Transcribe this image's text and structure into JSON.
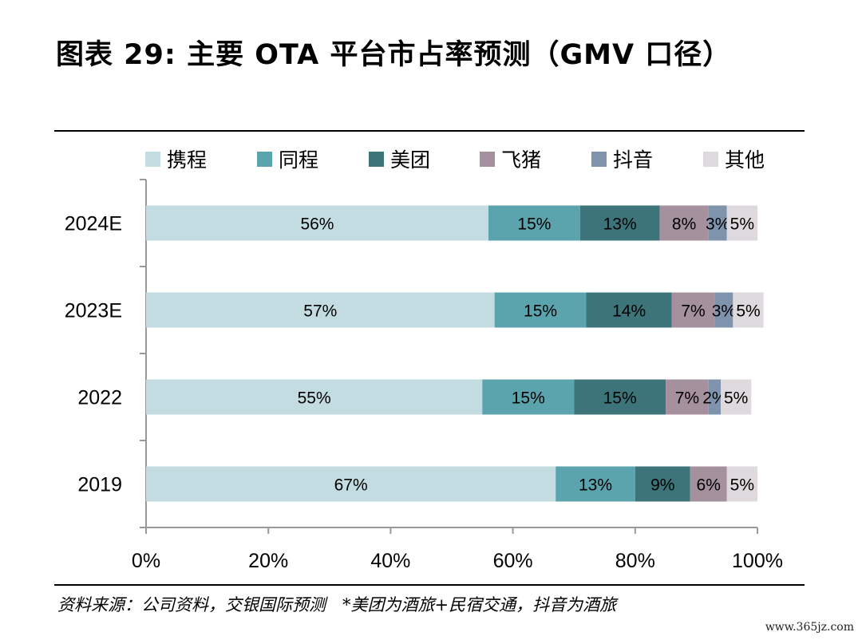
{
  "title": "图表 29: 主要 OTA 平台市占率预测（GMV 口径）",
  "source": "资料来源：公司资料，交银国际预测　*美团为酒旅+民宿交通，抖音为酒旅",
  "watermark": "www.365jz.com",
  "chart_data": {
    "type": "bar",
    "orientation": "horizontal",
    "stacked": true,
    "categories": [
      "2024E",
      "2023E",
      "2022",
      "2019"
    ],
    "series": [
      {
        "name": "携程",
        "color": "#c2dce1",
        "values": [
          56,
          57,
          55,
          67
        ],
        "labels": [
          "56%",
          "57%",
          "55%",
          "67%"
        ]
      },
      {
        "name": "同程",
        "color": "#5ba3ad",
        "values": [
          15,
          15,
          15,
          13
        ],
        "labels": [
          "15%",
          "15%",
          "15%",
          "13%"
        ]
      },
      {
        "name": "美团",
        "color": "#3c7479",
        "values": [
          13,
          14,
          15,
          9
        ],
        "labels": [
          "13%",
          "14%",
          "15%",
          "9%"
        ]
      },
      {
        "name": "飞猪",
        "color": "#a5909d",
        "values": [
          8,
          7,
          7,
          6
        ],
        "labels": [
          "8%",
          "7%",
          "7%",
          "6%"
        ]
      },
      {
        "name": "抖音",
        "color": "#8093ad",
        "values": [
          3,
          3,
          2,
          0
        ],
        "labels": [
          "3%",
          "3%",
          "2%",
          ""
        ]
      },
      {
        "name": "其他",
        "color": "#ddd9dc",
        "values": [
          5,
          5,
          5,
          5
        ],
        "labels": [
          "5%",
          "5%",
          "5%",
          "5%"
        ]
      }
    ],
    "xlim": [
      0,
      100
    ],
    "xticks": [
      0,
      20,
      40,
      60,
      80,
      100
    ],
    "xtick_labels": [
      "0%",
      "20%",
      "40%",
      "60%",
      "80%",
      "100%"
    ],
    "legend_position": "top",
    "grid": false
  }
}
